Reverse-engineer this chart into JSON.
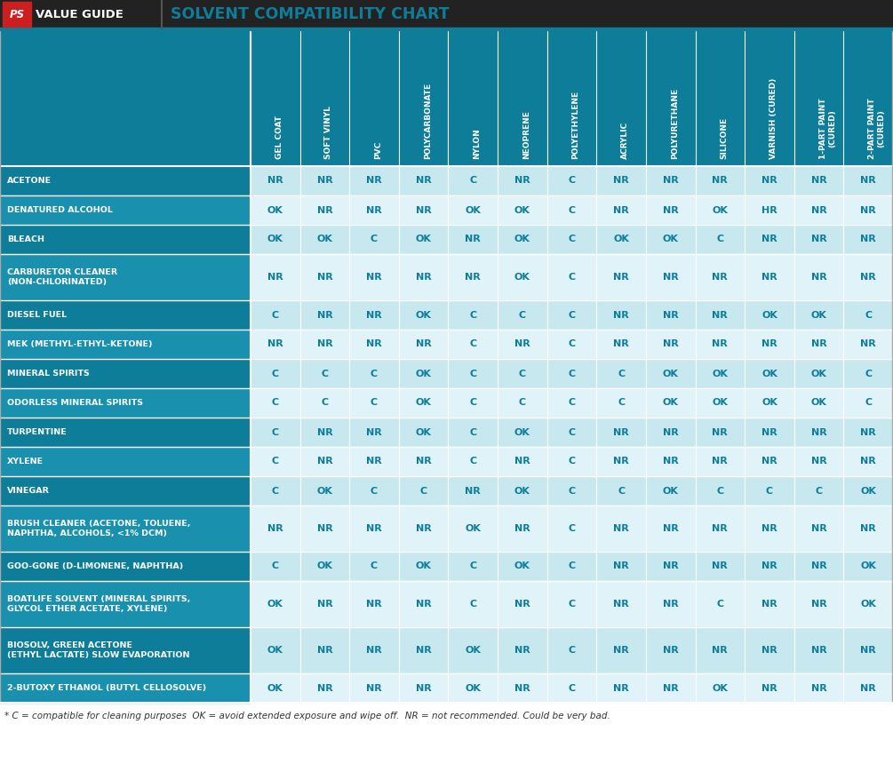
{
  "title_left": "VALUE GUIDE",
  "title_right": "SOLVENT COMPATIBILITY CHART",
  "columns": [
    "GEL COAT",
    "SOFT VINYL",
    "PVC",
    "POLYCARBONATE",
    "NYLON",
    "NEOPRENE",
    "POLYETHYLENE",
    "ACRYLIC",
    "POLYURETHANE",
    "SILICONE",
    "VARNISH (CURED)",
    "1-PART PAINT\n(CURED)",
    "2-PART PAINT\n(CURED)"
  ],
  "rows": [
    {
      "label": "ACETONE",
      "values": [
        "NR",
        "NR",
        "NR",
        "NR",
        "C",
        "NR",
        "C",
        "NR",
        "NR",
        "NR",
        "NR",
        "NR",
        "NR"
      ],
      "tall": false
    },
    {
      "label": "DENATURED ALCOHOL",
      "values": [
        "OK",
        "NR",
        "NR",
        "NR",
        "OK",
        "OK",
        "C",
        "NR",
        "NR",
        "OK",
        "HR",
        "NR",
        "NR"
      ],
      "tall": false
    },
    {
      "label": "BLEACH",
      "values": [
        "OK",
        "OK",
        "C",
        "OK",
        "NR",
        "OK",
        "C",
        "OK",
        "OK",
        "C",
        "NR",
        "NR",
        "NR"
      ],
      "tall": false
    },
    {
      "label": "CARBURETOR CLEANER\n(NON-CHLORINATED)",
      "values": [
        "NR",
        "NR",
        "NR",
        "NR",
        "NR",
        "OK",
        "C",
        "NR",
        "NR",
        "NR",
        "NR",
        "NR",
        "NR"
      ],
      "tall": true
    },
    {
      "label": "DIESEL FUEL",
      "values": [
        "C",
        "NR",
        "NR",
        "OK",
        "C",
        "C",
        "C",
        "NR",
        "NR",
        "NR",
        "OK",
        "OK",
        "C"
      ],
      "tall": false
    },
    {
      "label": "MEK (METHYL-ETHYL-KETONE)",
      "values": [
        "NR",
        "NR",
        "NR",
        "NR",
        "C",
        "NR",
        "C",
        "NR",
        "NR",
        "NR",
        "NR",
        "NR",
        "NR"
      ],
      "tall": false
    },
    {
      "label": "MINERAL SPIRITS",
      "values": [
        "C",
        "C",
        "C",
        "OK",
        "C",
        "C",
        "C",
        "C",
        "OK",
        "OK",
        "OK",
        "OK",
        "C"
      ],
      "tall": false
    },
    {
      "label": "ODORLESS MINERAL SPIRITS",
      "values": [
        "C",
        "C",
        "C",
        "OK",
        "C",
        "C",
        "C",
        "C",
        "OK",
        "OK",
        "OK",
        "OK",
        "C"
      ],
      "tall": false
    },
    {
      "label": "TURPENTINE",
      "values": [
        "C",
        "NR",
        "NR",
        "OK",
        "C",
        "OK",
        "C",
        "NR",
        "NR",
        "NR",
        "NR",
        "NR",
        "NR"
      ],
      "tall": false
    },
    {
      "label": "XYLENE",
      "values": [
        "C",
        "NR",
        "NR",
        "NR",
        "C",
        "NR",
        "C",
        "NR",
        "NR",
        "NR",
        "NR",
        "NR",
        "NR"
      ],
      "tall": false
    },
    {
      "label": "VINEGAR",
      "values": [
        "C",
        "OK",
        "C",
        "C",
        "NR",
        "OK",
        "C",
        "C",
        "OK",
        "C",
        "C",
        "C",
        "OK"
      ],
      "tall": false
    },
    {
      "label": "BRUSH CLEANER (ACETONE, TOLUENE,\nNAPHTHA, ALCOHOLS, <1% DCM)",
      "values": [
        "NR",
        "NR",
        "NR",
        "NR",
        "OK",
        "NR",
        "C",
        "NR",
        "NR",
        "NR",
        "NR",
        "NR",
        "NR"
      ],
      "tall": true
    },
    {
      "label": "GOO-GONE (D-LIMONENE, NAPHTHA)",
      "values": [
        "C",
        "OK",
        "C",
        "OK",
        "C",
        "OK",
        "C",
        "NR",
        "NR",
        "NR",
        "NR",
        "NR",
        "OK"
      ],
      "tall": false
    },
    {
      "label": "BOATLIFE SOLVENT (MINERAL SPIRITS,\nGLYCOL ETHER ACETATE, XYLENE)",
      "values": [
        "OK",
        "NR",
        "NR",
        "NR",
        "C",
        "NR",
        "C",
        "NR",
        "NR",
        "C",
        "NR",
        "NR",
        "OK"
      ],
      "tall": true
    },
    {
      "label": "BIOSOLV, GREEN ACETONE\n(ETHYL LACTATE) SLOW EVAPORATION",
      "values": [
        "OK",
        "NR",
        "NR",
        "NR",
        "OK",
        "NR",
        "C",
        "NR",
        "NR",
        "NR",
        "NR",
        "NR",
        "NR"
      ],
      "tall": true
    },
    {
      "label": "2-BUTOXY ETHANOL (BUTYL CELLOSOLVE)",
      "values": [
        "OK",
        "NR",
        "NR",
        "NR",
        "OK",
        "NR",
        "C",
        "NR",
        "NR",
        "OK",
        "NR",
        "NR",
        "NR"
      ],
      "tall": false
    }
  ],
  "footnote": "* C = compatible for cleaning purposes  OK = avoid extended exposure and wipe off.  NR = not recommended. Could be very bad.",
  "header_bg": "#0d7d9a",
  "row_bg_dark": "#0d7d9a",
  "row_bg_light": "#1990ad",
  "cell_bg_dark": "#c8e8f0",
  "cell_bg_light": "#e0f3f8",
  "cell_text_color": "#0d7d9a",
  "header_text_color": "#ffffff",
  "row_label_text_color": "#ffffff",
  "title_bar_bg": "#222222",
  "title_teal": "#0d7d9a",
  "border_color": "#ffffff",
  "footnote_color": "#333333"
}
